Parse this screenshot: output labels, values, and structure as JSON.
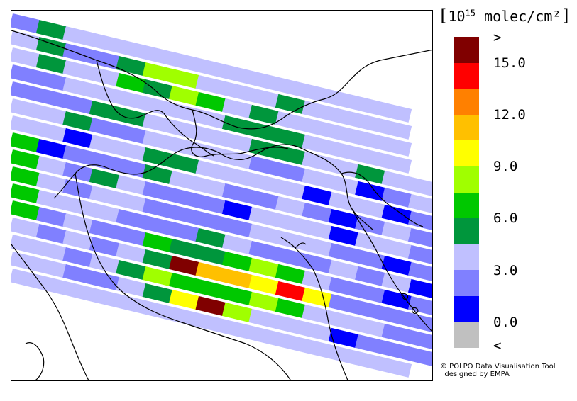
{
  "legend": {
    "title_prefix": "[",
    "title_base": "10",
    "title_exp": "15",
    "title_unit": " molec/cm²",
    "title_suffix": "]",
    "colors": [
      "#800000",
      "#ff0000",
      "#ff8000",
      "#ffc000",
      "#ffff00",
      "#a0ff00",
      "#00c800",
      "#00963c",
      "#c0c0ff",
      "#8080ff",
      "#0000ff",
      "#c0c0c0"
    ],
    "labels": [
      ">",
      "15.0",
      "12.0",
      "9.0",
      "6.0",
      "3.0",
      "0.0",
      "<"
    ]
  },
  "credit": {
    "line1": "© POLPO Data Visualisation Tool",
    "line2": "designed by EMPA"
  },
  "swaths": {
    "angle_deg": 13.5,
    "cell_width": 38.5,
    "rows": [
      {
        "start": 0,
        "cells": [
          9,
          7,
          8,
          8,
          8,
          8,
          8,
          8,
          8,
          8,
          8,
          8,
          8,
          8,
          8
        ]
      },
      {
        "start": 0,
        "cells": [
          8,
          7,
          9,
          9,
          7,
          5,
          5,
          8,
          8,
          8,
          7,
          8,
          8,
          8,
          8
        ]
      },
      {
        "start": 0,
        "cells": [
          8,
          7,
          8,
          8,
          6,
          7,
          5,
          6,
          8,
          7,
          8,
          8,
          8,
          8,
          8
        ]
      },
      {
        "start": 0,
        "cells": [
          9,
          9,
          8,
          8,
          8,
          8,
          8,
          8,
          7,
          7,
          7,
          8,
          8,
          8,
          8
        ]
      },
      {
        "start": 0,
        "cells": [
          9,
          9,
          9,
          7,
          7,
          8,
          8,
          8,
          8,
          7,
          7,
          8,
          8,
          7,
          8,
          8
        ]
      },
      {
        "start": 0,
        "cells": [
          8,
          8,
          7,
          9,
          9,
          8,
          8,
          8,
          8,
          9,
          9,
          8,
          8,
          10,
          9,
          8
        ]
      },
      {
        "start": 0,
        "cells": [
          8,
          8,
          10,
          8,
          8,
          7,
          7,
          8,
          8,
          8,
          8,
          10,
          8,
          8,
          10,
          9,
          8
        ]
      },
      {
        "start": 0,
        "cells": [
          6,
          10,
          9,
          9,
          9,
          7,
          8,
          8,
          9,
          9,
          8,
          9,
          10,
          9,
          8,
          9,
          8
        ]
      },
      {
        "start": 0,
        "cells": [
          6,
          8,
          9,
          7,
          8,
          9,
          9,
          9,
          10,
          8,
          8,
          8,
          10,
          8,
          8,
          9,
          8
        ]
      },
      {
        "start": 0,
        "cells": [
          6,
          8,
          9,
          8,
          8,
          9,
          9,
          9,
          9,
          8,
          8,
          8,
          9,
          9,
          10,
          9,
          8
        ]
      },
      {
        "start": 0,
        "cells": [
          6,
          8,
          8,
          8,
          9,
          9,
          9,
          7,
          8,
          9,
          9,
          9,
          8,
          9,
          8,
          10,
          8
        ]
      },
      {
        "start": 0,
        "cells": [
          6,
          9,
          8,
          9,
          9,
          6,
          7,
          7,
          6,
          5,
          6,
          8,
          9,
          9,
          10,
          9,
          8
        ]
      },
      {
        "start": 0,
        "cells": [
          8,
          9,
          8,
          9,
          8,
          7,
          0,
          3,
          3,
          4,
          1,
          4,
          9,
          9,
          9,
          9
        ]
      },
      {
        "start": 0,
        "cells": [
          8,
          8,
          9,
          8,
          7,
          5,
          6,
          6,
          6,
          5,
          6,
          8,
          8,
          8,
          9,
          9
        ]
      },
      {
        "start": 0,
        "cells": [
          8,
          8,
          9,
          9,
          8,
          7,
          4,
          0,
          5,
          8,
          8,
          8,
          10,
          9,
          9,
          9
        ]
      },
      {
        "start": 0,
        "cells": [
          8,
          8,
          8,
          8,
          8,
          8,
          8,
          8,
          8,
          8,
          8,
          8,
          8,
          8,
          8
        ]
      }
    ]
  }
}
